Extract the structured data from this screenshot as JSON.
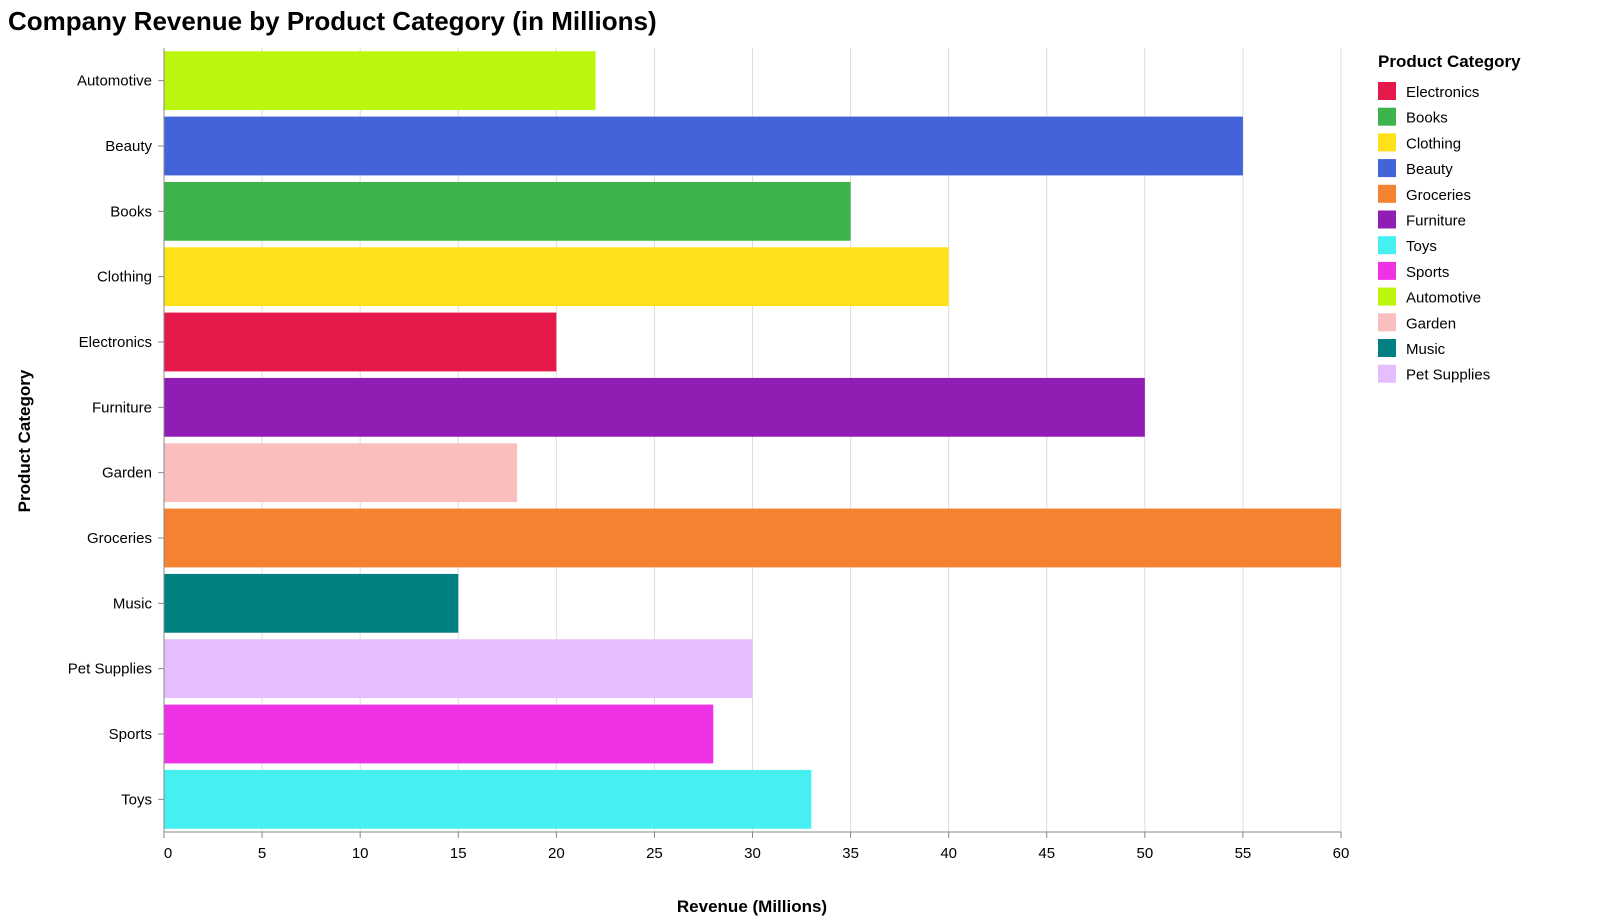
{
  "chart_data": {
    "type": "bar",
    "orientation": "horizontal",
    "title": "Company Revenue by Product Category (in Millions)",
    "xlabel": "Revenue (Millions)",
    "ylabel": "Product Category",
    "xlim": [
      0,
      60
    ],
    "x_ticks": [
      0,
      5,
      10,
      15,
      20,
      25,
      30,
      35,
      40,
      45,
      50,
      55,
      60
    ],
    "grid": true,
    "categories": [
      "Automotive",
      "Beauty",
      "Books",
      "Clothing",
      "Electronics",
      "Furniture",
      "Garden",
      "Groceries",
      "Music",
      "Pet Supplies",
      "Sports",
      "Toys"
    ],
    "values": [
      22,
      55,
      35,
      40,
      20,
      50,
      18,
      60,
      15,
      30,
      28,
      33
    ],
    "colors": {
      "Electronics": "#e6194b",
      "Books": "#3cb44b",
      "Clothing": "#ffe119",
      "Beauty": "#4363d8",
      "Groceries": "#f58231",
      "Furniture": "#911eb4",
      "Toys": "#46f0f0",
      "Sports": "#f032e6",
      "Automotive": "#bcf60c",
      "Garden": "#fabebe",
      "Music": "#008080",
      "Pet Supplies": "#e6beff"
    },
    "legend": {
      "title": "Product Category",
      "position": "right",
      "items": [
        "Electronics",
        "Books",
        "Clothing",
        "Beauty",
        "Groceries",
        "Furniture",
        "Toys",
        "Sports",
        "Automotive",
        "Garden",
        "Music",
        "Pet Supplies"
      ]
    }
  }
}
